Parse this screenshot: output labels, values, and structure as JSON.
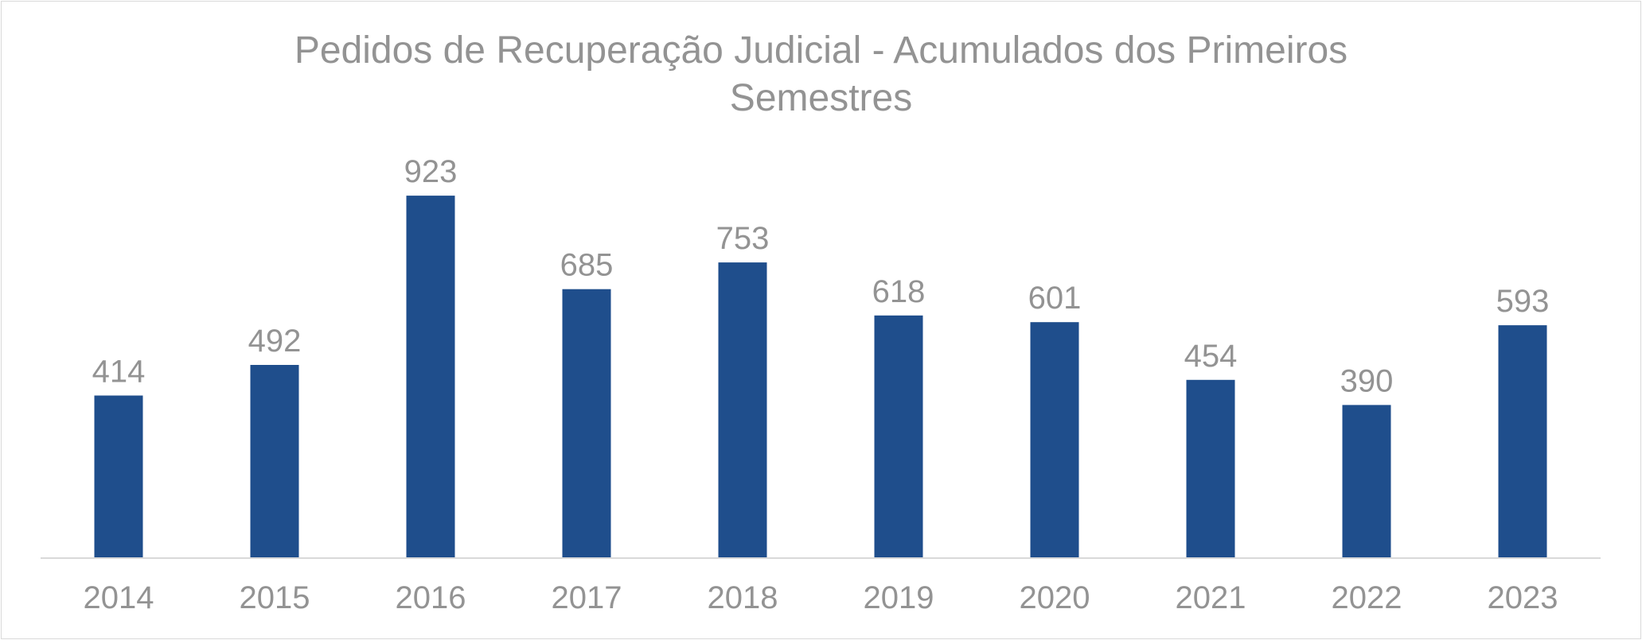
{
  "chart_data": {
    "type": "bar",
    "title_line1": "Pedidos de Recuperação Judicial - Acumulados dos Primeiros",
    "title_line2": "Semestres",
    "categories": [
      "2014",
      "2015",
      "2016",
      "2017",
      "2018",
      "2019",
      "2020",
      "2021",
      "2022",
      "2023"
    ],
    "values": [
      414,
      492,
      923,
      685,
      753,
      618,
      601,
      454,
      390,
      593
    ],
    "labels": [
      "414",
      "492",
      "923",
      "685",
      "753",
      "618",
      "601",
      "454",
      "390",
      "593"
    ],
    "xlabel": "",
    "ylabel": "",
    "ylim": [
      0,
      1000
    ],
    "grid": false,
    "legend": "none",
    "colors": {
      "bar": "#1f4e8c",
      "text": "#939393",
      "axis": "#d9d9d9"
    }
  }
}
